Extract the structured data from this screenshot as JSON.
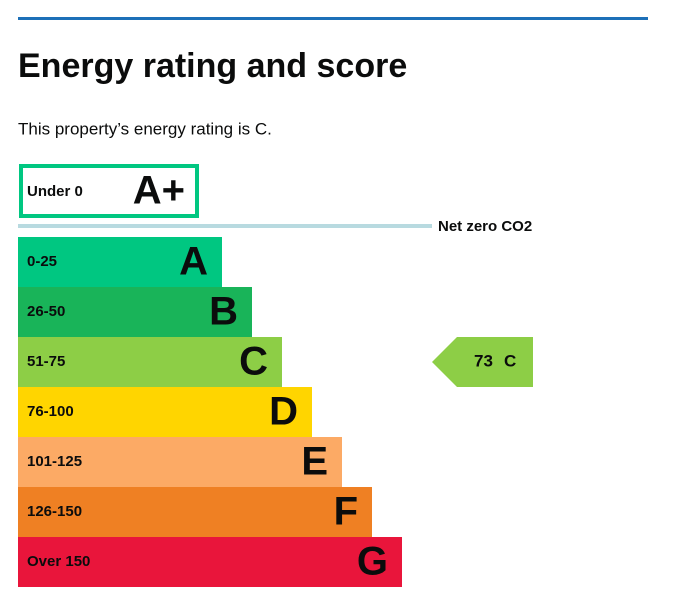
{
  "header": {
    "title": "Energy rating and score"
  },
  "intro": "This property’s energy rating is C.",
  "top_band": {
    "range": "Under 0",
    "letter": "A+",
    "color": "#00c781"
  },
  "net_zero_label": "Net zero CO2",
  "bands": [
    {
      "range": "0-25",
      "letter": "A",
      "color": "#00c781"
    },
    {
      "range": "26-50",
      "letter": "B",
      "color": "#19b459"
    },
    {
      "range": "51-75",
      "letter": "C",
      "color": "#8dce46"
    },
    {
      "range": "76-100",
      "letter": "D",
      "color": "#ffd500"
    },
    {
      "range": "101-125",
      "letter": "E",
      "color": "#fcaa65"
    },
    {
      "range": "126-150",
      "letter": "F",
      "color": "#ef8023"
    },
    {
      "range": "Over 150",
      "letter": "G",
      "color": "#e9153b"
    }
  ],
  "current": {
    "score": 73,
    "letter": "C",
    "color": "#8dce46"
  }
}
